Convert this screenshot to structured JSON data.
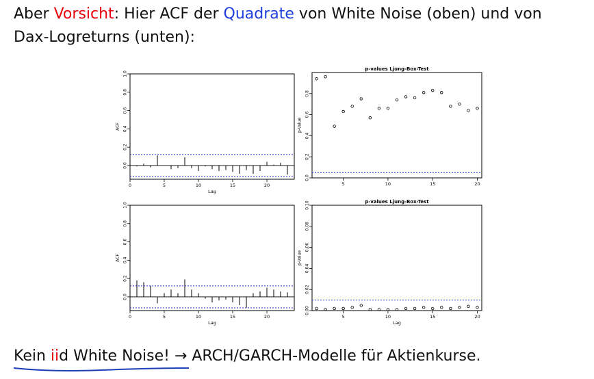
{
  "intro": {
    "part1": "Aber ",
    "vorsicht": "Vorsicht",
    "part2": ": Hier ACF der ",
    "quadrate": "Quadrate",
    "part3": " von White Noise (oben) und von",
    "line2": "Dax-Logreturns (unten):"
  },
  "conclusion": {
    "pre": "Kein ",
    "iid": "ii",
    "post": "d White Noise!",
    "arrow": "→",
    "rest": "ARCH/GARCH-Modelle für Aktienkurse."
  },
  "colors": {
    "accent_red": "#e8000b",
    "accent_blue": "#1f3ee0",
    "ci_line": "#2a2ae0"
  },
  "chart_data": [
    {
      "id": "acf_top",
      "type": "bar",
      "xlabel": "Lag",
      "ylabel": "ACF",
      "xlim": [
        0,
        24
      ],
      "ylim": [
        -0.15,
        1.0
      ],
      "xticks": [
        "0",
        "5",
        "10",
        "15",
        "20"
      ],
      "yticks": [
        "0.0",
        "0.2",
        "0.4",
        "0.6",
        "0.8",
        "1.0"
      ],
      "ci": [
        0.12,
        -0.12
      ],
      "x": [
        0,
        1,
        2,
        3,
        4,
        5,
        6,
        7,
        8,
        9,
        10,
        11,
        12,
        13,
        14,
        15,
        16,
        17,
        18,
        19,
        20,
        21,
        22,
        23,
        24
      ],
      "values": [
        1.0,
        -0.01,
        0.02,
        -0.02,
        0.11,
        0.0,
        -0.04,
        -0.03,
        0.09,
        -0.03,
        -0.06,
        -0.01,
        -0.04,
        -0.06,
        -0.05,
        -0.07,
        -0.09,
        -0.05,
        -0.09,
        -0.06,
        0.04,
        0.01,
        0.03,
        -0.1,
        -0.04
      ]
    },
    {
      "id": "pval_top",
      "type": "scatter",
      "title": "p-values Ljung-Box-Test",
      "xlabel": "",
      "ylabel": "p-Value",
      "xlim": [
        1.5,
        20.5
      ],
      "ylim": [
        0,
        1.0
      ],
      "xticks": [
        "5",
        "10",
        "15",
        "20"
      ],
      "yticks": [
        "0.0",
        "0.2",
        "0.4",
        "0.6",
        "0.8"
      ],
      "ref": 0.05,
      "x": [
        2,
        3,
        4,
        5,
        6,
        7,
        8,
        9,
        10,
        11,
        12,
        13,
        14,
        15,
        16,
        17,
        18,
        19,
        20
      ],
      "values": [
        0.94,
        0.96,
        0.49,
        0.63,
        0.68,
        0.75,
        0.57,
        0.66,
        0.66,
        0.74,
        0.77,
        0.76,
        0.81,
        0.83,
        0.81,
        0.68,
        0.7,
        0.64,
        0.66
      ]
    },
    {
      "id": "acf_bottom",
      "type": "bar",
      "xlabel": "Lag",
      "ylabel": "ACF",
      "xlim": [
        0,
        24
      ],
      "ylim": [
        -0.15,
        1.0
      ],
      "xticks": [
        "0",
        "5",
        "10",
        "15",
        "20"
      ],
      "yticks": [
        "0.0",
        "0.2",
        "0.4",
        "0.6",
        "0.8",
        "1.0"
      ],
      "ci": [
        0.12,
        -0.12
      ],
      "x": [
        0,
        1,
        2,
        3,
        4,
        5,
        6,
        7,
        8,
        9,
        10,
        11,
        12,
        13,
        14,
        15,
        16,
        17,
        18,
        19,
        20,
        21,
        22,
        23,
        24
      ],
      "values": [
        1.0,
        0.18,
        0.16,
        0.12,
        -0.07,
        0.04,
        0.08,
        0.04,
        0.19,
        0.08,
        0.04,
        -0.02,
        -0.06,
        -0.04,
        -0.03,
        -0.06,
        -0.09,
        -0.12,
        0.04,
        0.06,
        0.1,
        0.08,
        0.06,
        0.05,
        0.02
      ]
    },
    {
      "id": "pval_bottom",
      "type": "scatter",
      "title": "p-values Ljung-Box-Test",
      "xlabel": "Lag",
      "ylabel": "p-Value",
      "xlim": [
        1.5,
        20.5
      ],
      "ylim": [
        0,
        0.1
      ],
      "xticks": [
        "5",
        "10",
        "15",
        "20"
      ],
      "yticks": [
        "0.00",
        "0.02",
        "0.04",
        "0.06",
        "0.08",
        "0.10"
      ],
      "ref": 0.01,
      "x": [
        2,
        3,
        4,
        5,
        6,
        7,
        8,
        9,
        10,
        11,
        12,
        13,
        14,
        15,
        16,
        17,
        18,
        19,
        20
      ],
      "values": [
        0.002,
        0.001,
        0.002,
        0.002,
        0.003,
        0.005,
        0.001,
        0.001,
        0.001,
        0.001,
        0.002,
        0.002,
        0.003,
        0.002,
        0.003,
        0.002,
        0.003,
        0.004,
        0.003
      ]
    }
  ]
}
